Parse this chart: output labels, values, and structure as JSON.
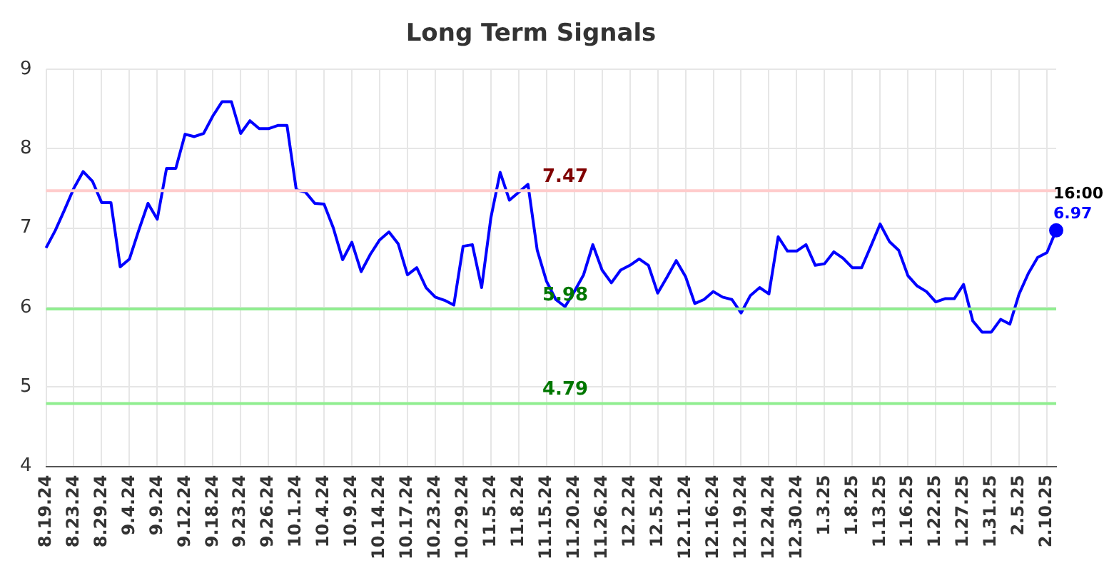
{
  "chart_data": {
    "type": "line",
    "title": "Long Term Signals",
    "categories": [
      "8.19.24",
      null,
      null,
      "8.23.24",
      null,
      null,
      "8.29.24",
      null,
      null,
      "9.4.24",
      null,
      null,
      "9.9.24",
      null,
      null,
      "9.12.24",
      null,
      null,
      "9.18.24",
      null,
      null,
      "9.23.24",
      null,
      null,
      "9.26.24",
      null,
      null,
      "10.1.24",
      null,
      null,
      "10.4.24",
      null,
      null,
      "10.9.24",
      null,
      null,
      "10.14.24",
      null,
      null,
      "10.17.24",
      null,
      null,
      "10.23.24",
      null,
      null,
      "10.29.24",
      null,
      null,
      "11.5.24",
      null,
      null,
      "11.8.24",
      null,
      null,
      "11.15.24",
      null,
      null,
      "11.20.24",
      null,
      null,
      "11.26.24",
      null,
      null,
      "12.2.24",
      null,
      null,
      "12.5.24",
      null,
      null,
      "12.11.24",
      null,
      null,
      "12.16.24",
      null,
      null,
      "12.19.24",
      null,
      null,
      "12.24.24",
      null,
      null,
      "12.30.24",
      null,
      null,
      "1.3.25",
      null,
      null,
      "1.8.25",
      null,
      null,
      "1.13.25",
      null,
      null,
      "1.16.25",
      null,
      null,
      "1.22.25",
      null,
      null,
      "1.27.25",
      null,
      null,
      "1.31.25",
      null,
      null,
      "2.5.25",
      null,
      null,
      "2.10.25",
      null
    ],
    "series": [
      {
        "color": "#0000ff",
        "values": [
          6.75,
          6.97,
          7.23,
          7.5,
          7.71,
          7.59,
          7.32,
          7.32,
          6.51,
          6.61,
          6.97,
          7.31,
          7.11,
          7.75,
          7.75,
          8.18,
          8.15,
          8.19,
          8.41,
          8.59,
          8.59,
          8.19,
          8.35,
          8.25,
          8.25,
          8.29,
          8.29,
          7.48,
          7.45,
          7.31,
          7.3,
          7.0,
          6.6,
          6.82,
          6.45,
          6.67,
          6.85,
          6.95,
          6.8,
          6.41,
          6.5,
          6.25,
          6.13,
          6.09,
          6.03,
          6.77,
          6.79,
          6.25,
          7.13,
          7.7,
          7.35,
          7.45,
          7.55,
          6.72,
          6.33,
          6.1,
          6.01,
          6.2,
          6.41,
          6.79,
          6.47,
          6.31,
          6.47,
          6.53,
          6.61,
          6.53,
          6.18,
          6.38,
          6.59,
          6.39,
          6.05,
          6.1,
          6.2,
          6.13,
          6.1,
          5.93,
          6.15,
          6.25,
          6.17,
          6.89,
          6.71,
          6.71,
          6.79,
          6.53,
          6.55,
          6.7,
          6.62,
          6.5,
          6.5,
          6.77,
          7.05,
          6.83,
          6.72,
          6.4,
          6.27,
          6.2,
          6.07,
          6.11,
          6.11,
          6.29,
          5.83,
          5.69,
          5.69,
          5.85,
          5.79,
          6.17,
          6.43,
          6.63,
          6.69,
          6.97
        ],
        "value_labels": [
          null,
          null,
          null,
          null,
          null,
          null,
          null,
          null,
          null,
          null,
          null,
          null,
          null,
          null,
          null,
          null,
          null,
          null,
          null,
          null,
          null,
          null,
          null,
          null,
          null,
          null,
          null,
          null,
          null,
          null,
          null,
          null,
          null,
          null,
          null,
          null,
          null,
          null,
          null,
          null,
          null,
          null,
          null,
          null,
          null,
          null,
          null,
          null,
          null,
          null,
          null,
          null,
          null,
          null,
          null,
          null,
          null,
          null,
          null,
          null,
          null,
          null,
          null,
          null,
          null,
          null,
          null,
          null,
          null,
          null,
          null,
          null,
          null,
          null,
          null,
          null,
          null,
          null,
          null,
          null,
          null,
          null,
          null,
          null,
          null,
          null,
          null,
          null,
          null,
          null,
          null,
          null,
          null,
          null,
          null,
          null,
          null,
          null,
          null,
          null,
          null,
          null,
          null,
          null,
          null,
          null,
          null,
          null,
          null,
          "6.97"
        ]
      }
    ],
    "annotations": [
      "16:00"
    ],
    "ylim": [
      4,
      9
    ],
    "yticks": [
      4,
      5,
      6,
      7,
      8,
      9
    ],
    "grid": true,
    "legend": false,
    "marker": "none",
    "line_style": "solid",
    "ref_lines": [
      {
        "axis": "y",
        "value": 7.47,
        "label": "7.47",
        "color": "#ffcccc"
      },
      {
        "axis": "y",
        "value": 5.98,
        "label": "5.98",
        "color": "#90ee90"
      },
      {
        "axis": "y",
        "value": 4.79,
        "label": "4.79",
        "color": "#90ee90"
      }
    ]
  }
}
